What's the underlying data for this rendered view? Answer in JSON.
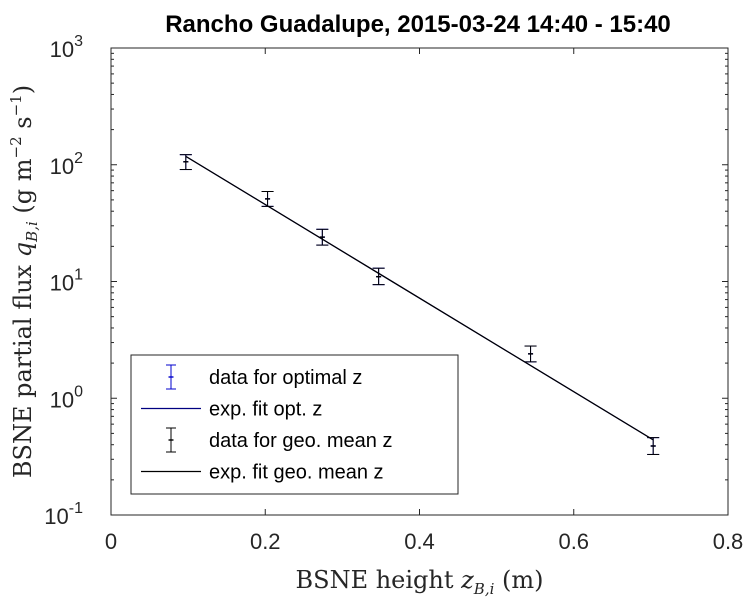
{
  "chart_data": {
    "type": "scatter",
    "title": "Rancho Guadalupe, 2015-03-24 14:40 - 15:40",
    "xlabel": {
      "prefix": "BSNE height ",
      "var": "z",
      "sub": "B,i",
      "suffix": " (m)"
    },
    "ylabel": {
      "prefix": "BSNE partial flux ",
      "var": "q",
      "sub": "B,i",
      "suffix_open": " (g m",
      "exp1": "−2",
      "mid": " s",
      "exp2": "−1",
      "suffix_close": ")"
    },
    "x_range": [
      0,
      0.8
    ],
    "y_range": [
      0.1,
      1000
    ],
    "y_scale": "log",
    "x_ticks": [
      0,
      0.2,
      0.4,
      0.6,
      0.8
    ],
    "x_tick_labels": [
      "0",
      "0.2",
      "0.4",
      "0.6",
      "0.8"
    ],
    "y_ticks": [
      0.1,
      1,
      10,
      100,
      1000
    ],
    "y_tick_labels": [
      {
        "base": "10",
        "exp": "-1"
      },
      {
        "base": "10",
        "exp": "0"
      },
      {
        "base": "10",
        "exp": "1"
      },
      {
        "base": "10",
        "exp": "2"
      },
      {
        "base": "10",
        "exp": "3"
      }
    ],
    "grid": false,
    "legend_position": "bottom-left",
    "series": [
      {
        "name": "data for optimal z",
        "kind": "errorbar",
        "color": "#0000cc",
        "x": [
          0.097,
          0.203,
          0.274,
          0.347,
          0.544,
          0.703
        ],
        "y": [
          106,
          51,
          24,
          11,
          2.4,
          0.39
        ],
        "y_low": [
          91,
          44,
          20.5,
          9.4,
          2.05,
          0.33
        ],
        "y_high": [
          122,
          59,
          28,
          13,
          2.8,
          0.46
        ]
      },
      {
        "name": "exp. fit opt. z",
        "kind": "line",
        "color": "#000080",
        "x": [
          0.097,
          0.703
        ],
        "y": [
          118,
          0.44
        ]
      },
      {
        "name": "data for geo. mean z",
        "kind": "errorbar",
        "color": "#000000",
        "x": [
          0.097,
          0.203,
          0.274,
          0.347,
          0.544,
          0.703
        ],
        "y": [
          106,
          51,
          24,
          11,
          2.4,
          0.39
        ],
        "y_low": [
          91,
          44,
          20.5,
          9.4,
          2.05,
          0.33
        ],
        "y_high": [
          122,
          59,
          28,
          13,
          2.8,
          0.46
        ]
      },
      {
        "name": "exp. fit geo. mean z",
        "kind": "line",
        "color": "#000000",
        "x": [
          0.097,
          0.703
        ],
        "y": [
          118,
          0.44
        ]
      }
    ]
  }
}
